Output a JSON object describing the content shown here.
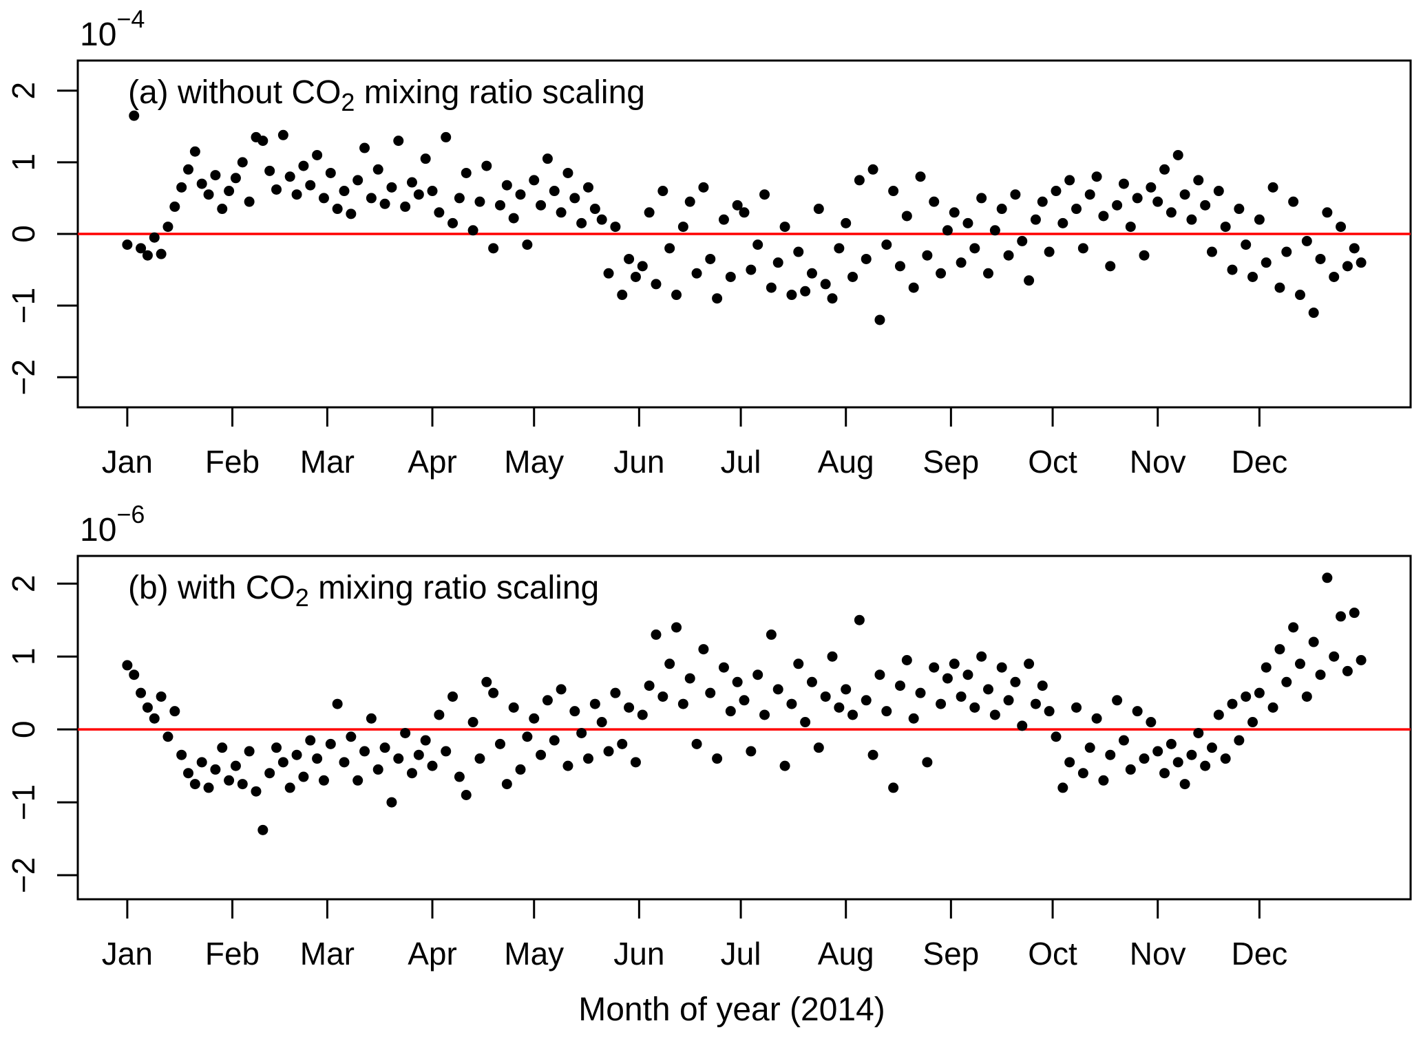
{
  "figure": {
    "x_axis_title": "Month of year (2014)",
    "colors": {
      "point": "#000000",
      "zero_line": "#ff0000",
      "axis": "#000000",
      "background": "#ffffff"
    }
  },
  "chart_data": [
    {
      "id": "a",
      "type": "scatter",
      "title_prefix": "(a) without CO",
      "title_sub": "2",
      "title_suffix": " mixing ratio scaling",
      "scale_base": "10",
      "scale_exponent": "−4",
      "xlim": [
        -13.6,
        379.6
      ],
      "ylim": [
        -2.42,
        2.42
      ],
      "yticks": [
        -2,
        -1,
        0,
        1,
        2
      ],
      "xticks_days": [
        1,
        32,
        60,
        91,
        121,
        152,
        182,
        213,
        244,
        274,
        305,
        335
      ],
      "xticks_labels": [
        "Jan",
        "Feb",
        "Mar",
        "Apr",
        "May",
        "Jun",
        "Jul",
        "Aug",
        "Sep",
        "Oct",
        "Nov",
        "Dec"
      ],
      "zero_line": 0,
      "x_start_day": 1,
      "x_step_days": 2,
      "y": [
        -0.15,
        1.65,
        -0.2,
        -0.3,
        -0.05,
        -0.28,
        0.1,
        0.38,
        0.65,
        0.9,
        1.15,
        0.7,
        0.55,
        0.82,
        0.35,
        0.6,
        0.78,
        1.0,
        0.45,
        1.35,
        1.3,
        0.88,
        0.62,
        1.38,
        0.8,
        0.55,
        0.95,
        0.68,
        1.1,
        0.5,
        0.85,
        0.35,
        0.6,
        0.28,
        0.75,
        1.2,
        0.5,
        0.9,
        0.42,
        0.65,
        1.3,
        0.38,
        0.72,
        0.55,
        1.05,
        0.6,
        0.3,
        1.35,
        0.15,
        0.5,
        0.85,
        0.05,
        0.45,
        0.95,
        -0.2,
        0.4,
        0.68,
        0.22,
        0.55,
        -0.15,
        0.75,
        0.4,
        1.05,
        0.6,
        0.3,
        0.85,
        0.5,
        0.15,
        0.65,
        0.35,
        0.2,
        -0.55,
        0.1,
        -0.85,
        -0.35,
        -0.6,
        -0.45,
        0.3,
        -0.7,
        0.6,
        -0.2,
        -0.85,
        0.1,
        0.45,
        -0.55,
        0.65,
        -0.35,
        -0.9,
        0.2,
        -0.6,
        0.4,
        0.3,
        -0.5,
        -0.15,
        0.55,
        -0.75,
        -0.4,
        0.1,
        -0.85,
        -0.25,
        -0.8,
        -0.55,
        0.35,
        -0.7,
        -0.9,
        -0.2,
        0.15,
        -0.6,
        0.75,
        -0.35,
        0.9,
        -1.2,
        -0.15,
        0.6,
        -0.45,
        0.25,
        -0.75,
        0.8,
        -0.3,
        0.45,
        -0.55,
        0.05,
        0.3,
        -0.4,
        0.15,
        -0.2,
        0.5,
        -0.55,
        0.05,
        0.35,
        -0.3,
        0.55,
        -0.1,
        -0.65,
        0.2,
        0.45,
        -0.25,
        0.6,
        0.15,
        0.75,
        0.35,
        -0.2,
        0.55,
        0.8,
        0.25,
        -0.45,
        0.4,
        0.7,
        0.1,
        0.5,
        -0.3,
        0.65,
        0.45,
        0.9,
        0.3,
        1.1,
        0.55,
        0.2,
        0.75,
        0.4,
        -0.25,
        0.6,
        0.1,
        -0.5,
        0.35,
        -0.15,
        -0.6,
        0.2,
        -0.4,
        0.65,
        -0.75,
        -0.25,
        0.45,
        -0.85,
        -0.1,
        -1.1,
        -0.35,
        0.3,
        -0.6,
        0.1,
        -0.45,
        -0.2,
        -0.4
      ]
    },
    {
      "id": "b",
      "type": "scatter",
      "title_prefix": "(b) with CO",
      "title_sub": "2",
      "title_suffix": " mixing ratio scaling",
      "scale_base": "10",
      "scale_exponent": "−6",
      "xlim": [
        -13.6,
        379.6
      ],
      "ylim": [
        -2.33,
        2.38
      ],
      "yticks": [
        -2,
        -1,
        0,
        1,
        2
      ],
      "xticks_days": [
        1,
        32,
        60,
        91,
        121,
        152,
        182,
        213,
        244,
        274,
        305,
        335
      ],
      "xticks_labels": [
        "Jan",
        "Feb",
        "Mar",
        "Apr",
        "May",
        "Jun",
        "Jul",
        "Aug",
        "Sep",
        "Oct",
        "Nov",
        "Dec"
      ],
      "zero_line": 0,
      "x_start_day": 1,
      "x_step_days": 2,
      "y": [
        0.88,
        0.75,
        0.5,
        0.3,
        0.15,
        0.45,
        -0.1,
        0.25,
        -0.35,
        -0.6,
        -0.75,
        -0.45,
        -0.8,
        -0.55,
        -0.25,
        -0.7,
        -0.5,
        -0.75,
        -0.3,
        -0.85,
        -1.38,
        -0.6,
        -0.25,
        -0.45,
        -0.8,
        -0.35,
        -0.65,
        -0.15,
        -0.4,
        -0.7,
        -0.2,
        0.35,
        -0.45,
        -0.1,
        -0.7,
        -0.3,
        0.15,
        -0.55,
        -0.25,
        -1.0,
        -0.4,
        -0.05,
        -0.6,
        -0.35,
        -0.15,
        -0.5,
        0.2,
        -0.3,
        0.45,
        -0.65,
        -0.9,
        0.1,
        -0.4,
        0.65,
        0.5,
        -0.2,
        -0.75,
        0.3,
        -0.55,
        -0.1,
        0.15,
        -0.35,
        0.4,
        -0.15,
        0.55,
        -0.5,
        0.25,
        -0.05,
        -0.4,
        0.35,
        0.1,
        -0.3,
        0.5,
        -0.2,
        0.3,
        -0.45,
        0.2,
        0.6,
        1.3,
        0.45,
        0.9,
        1.4,
        0.35,
        0.7,
        -0.2,
        1.1,
        0.5,
        -0.4,
        0.85,
        0.25,
        0.65,
        0.4,
        -0.3,
        0.75,
        0.2,
        1.3,
        0.55,
        -0.5,
        0.35,
        0.9,
        0.1,
        0.65,
        -0.25,
        0.45,
        1.0,
        0.3,
        0.55,
        0.2,
        1.5,
        0.4,
        -0.35,
        0.75,
        0.25,
        -0.8,
        0.6,
        0.95,
        0.15,
        0.5,
        -0.45,
        0.85,
        0.35,
        0.7,
        0.9,
        0.45,
        0.75,
        0.3,
        1.0,
        0.55,
        0.2,
        0.85,
        0.4,
        0.65,
        0.05,
        0.9,
        0.35,
        0.6,
        0.25,
        -0.1,
        -0.8,
        -0.45,
        0.3,
        -0.6,
        -0.25,
        0.15,
        -0.7,
        -0.35,
        0.4,
        -0.15,
        -0.55,
        0.25,
        -0.4,
        0.1,
        -0.3,
        -0.6,
        -0.2,
        -0.45,
        -0.75,
        -0.35,
        -0.05,
        -0.5,
        -0.25,
        0.2,
        -0.4,
        0.35,
        -0.15,
        0.45,
        0.1,
        0.5,
        0.85,
        0.3,
        1.1,
        0.65,
        1.4,
        0.9,
        0.45,
        1.2,
        0.75,
        2.08,
        1.0,
        1.55,
        0.8,
        1.6,
        0.95
      ]
    }
  ]
}
